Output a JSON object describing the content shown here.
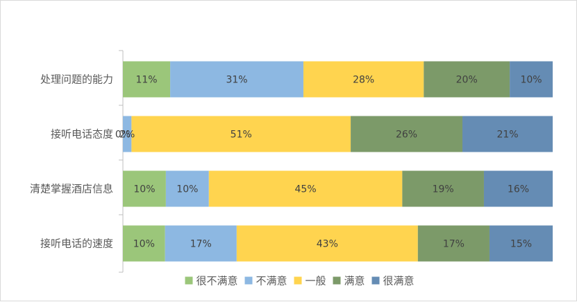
{
  "chart_data": {
    "type": "bar",
    "orientation": "horizontal",
    "stacking": "percent",
    "categories": [
      "处理问题的能力",
      "接听电话态度",
      "清楚掌握酒店信息",
      "接听电话的速度"
    ],
    "series": [
      {
        "name": "很不满意",
        "color": "#9BC67A",
        "values": [
          11,
          0,
          10,
          10
        ],
        "labels": [
          "11%",
          "0%",
          "10%",
          "10%"
        ]
      },
      {
        "name": "不满意",
        "color": "#8DB8E2",
        "values": [
          31,
          2,
          10,
          17
        ],
        "labels": [
          "31%",
          "2%",
          "10%",
          "17%"
        ]
      },
      {
        "name": "一般",
        "color": "#FFD44F",
        "values": [
          28,
          51,
          45,
          43
        ],
        "labels": [
          "28%",
          "51%",
          "45%",
          "43%"
        ]
      },
      {
        "name": "满意",
        "color": "#7C9A69",
        "values": [
          20,
          26,
          19,
          17
        ],
        "labels": [
          "20%",
          "26%",
          "19%",
          "17%"
        ]
      },
      {
        "name": "很满意",
        "color": "#658CB4",
        "values": [
          10,
          21,
          16,
          15
        ],
        "labels": [
          "10%",
          "21%",
          "16%",
          "15%"
        ]
      }
    ],
    "legend": "bottom",
    "grid": false
  }
}
